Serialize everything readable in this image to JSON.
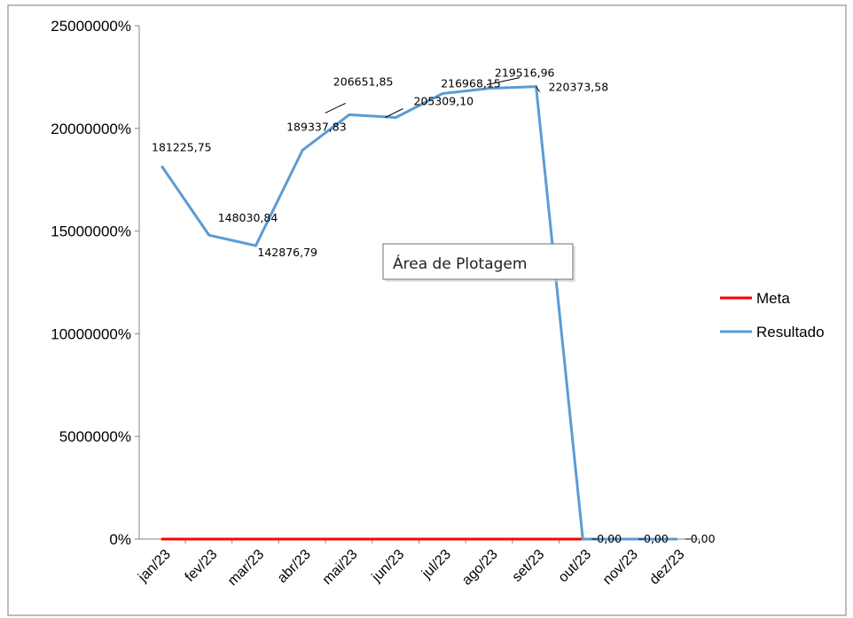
{
  "chart_data": {
    "type": "line",
    "categories": [
      "jan/23",
      "fev/23",
      "mar/23",
      "abr/23",
      "mai/23",
      "jun/23",
      "jul/23",
      "ago/23",
      "set/23",
      "out/23",
      "nov/23",
      "dez/23"
    ],
    "y_ticks": [
      "0%",
      "5000000%",
      "10000000%",
      "15000000%",
      "20000000%",
      "25000000%"
    ],
    "ylim": [
      0,
      250000
    ],
    "series": [
      {
        "name": "Meta",
        "color": "#ff0000",
        "values": [
          0,
          0,
          0,
          0,
          0,
          0,
          0,
          0,
          0,
          0,
          0,
          0
        ]
      },
      {
        "name": "Resultado",
        "color": "#5b9bd5",
        "values": [
          181225.75,
          148030.84,
          142876.79,
          189337.83,
          206651.85,
          205309.1,
          216968.15,
          219516.96,
          220373.58,
          0,
          0,
          0
        ]
      }
    ],
    "data_labels": [
      "181225,75",
      "148030,84",
      "142876,79",
      "189337,83",
      "206651,85",
      "205309,10",
      "216968,15",
      "219516,96",
      "220373,58",
      "0,00",
      "0,00",
      "0,00"
    ],
    "legend_position": "right",
    "grid": false
  },
  "tooltip": {
    "text": "Área de Plotagem"
  }
}
